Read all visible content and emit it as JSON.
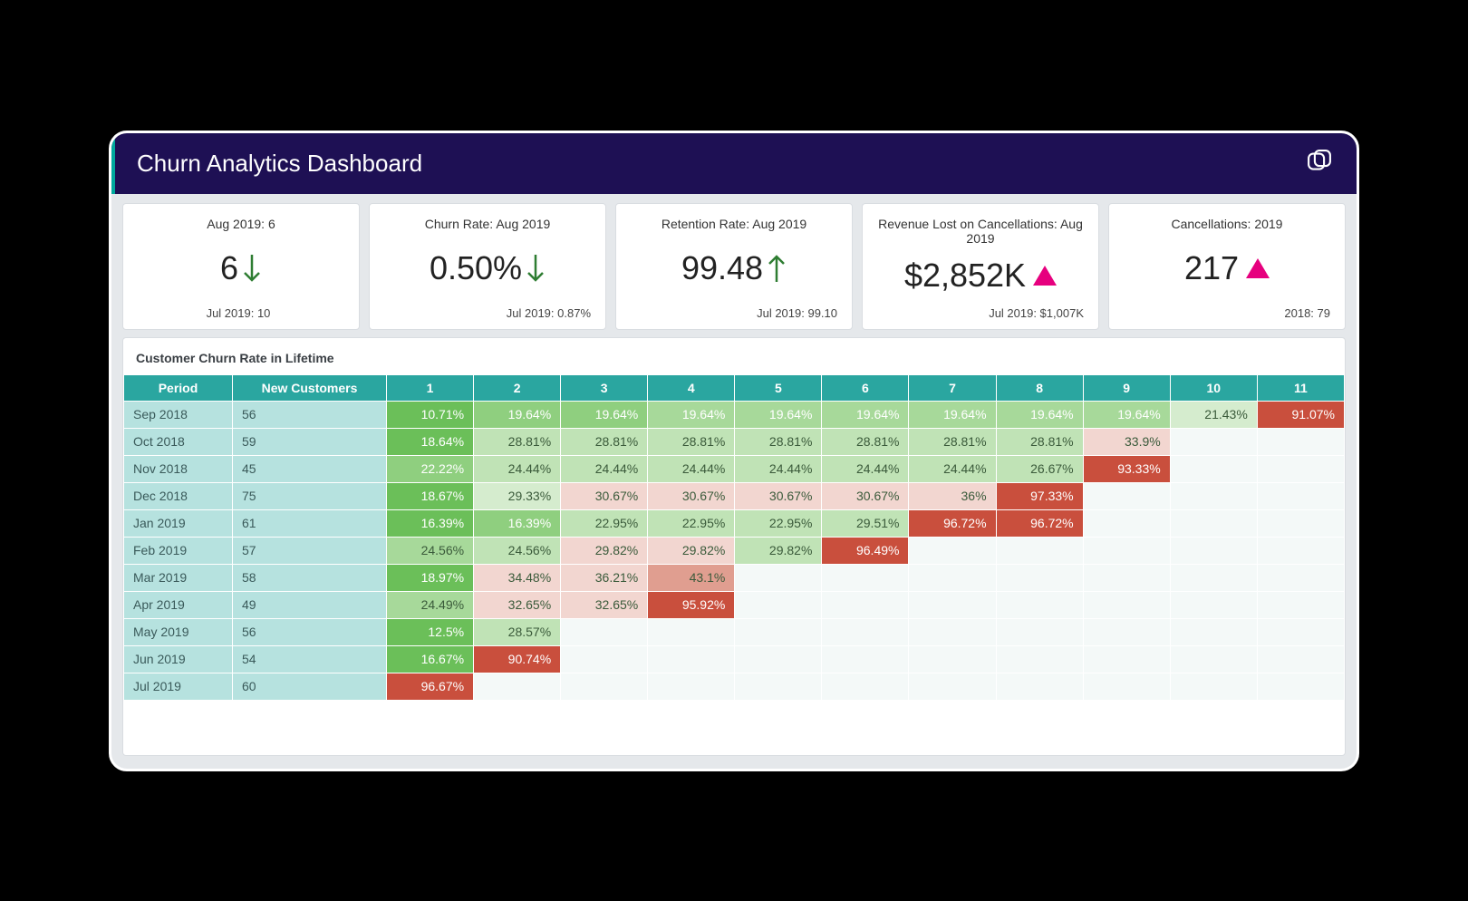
{
  "header": {
    "title": "Churn Analytics Dashboard"
  },
  "kpis": [
    {
      "title": "Aug 2019: 6",
      "value": "6",
      "indicator": "arrow-down",
      "indicator_color": "#2e7d32",
      "sub": "Jul 2019: 10",
      "sub_align": "center"
    },
    {
      "title": "Churn Rate: Aug 2019",
      "value": "0.50%",
      "indicator": "arrow-down",
      "indicator_color": "#2e7d32",
      "sub": "Jul 2019: 0.87%",
      "sub_align": "right"
    },
    {
      "title": "Retention Rate: Aug 2019",
      "value": "99.48",
      "indicator": "arrow-up",
      "indicator_color": "#2e7d32",
      "sub": "Jul 2019: 99.10",
      "sub_align": "right"
    },
    {
      "title": "Revenue Lost on Cancellations: Aug 2019",
      "value": "$2,852K",
      "indicator": "triangle-up",
      "indicator_color": "#e6007e",
      "sub": "Jul 2019: $1,007K",
      "sub_align": "right"
    },
    {
      "title": "Cancellations: 2019",
      "value": "217",
      "indicator": "triangle-up",
      "indicator_color": "#e6007e",
      "sub": "2018: 79",
      "sub_align": "right"
    }
  ],
  "cohort": {
    "title": "Customer Churn Rate in Lifetime",
    "columns": [
      "Period",
      "New Customers",
      "1",
      "2",
      "3",
      "4",
      "5",
      "6",
      "7",
      "8",
      "9",
      "10",
      "11"
    ],
    "heat_colors": {
      "g1": "#6bbf59",
      "g2": "#8fcf7f",
      "g3": "#a7d99a",
      "g4": "#c0e3b6",
      "g5": "#d5ecce",
      "p1": "#f2d6d0",
      "p2": "#e9b9af",
      "p3": "#e09e90",
      "r1": "#c94f3d",
      "text_light": "#ffffff",
      "text_dark": "#3a5a3a"
    },
    "rows": [
      {
        "period": "Sep 2018",
        "new": "56",
        "cells": [
          {
            "v": "10.71%",
            "bg": "#6bbf59",
            "fg": "#ffffff"
          },
          {
            "v": "19.64%",
            "bg": "#8fcf7f",
            "fg": "#ffffff"
          },
          {
            "v": "19.64%",
            "bg": "#8fcf7f",
            "fg": "#ffffff"
          },
          {
            "v": "19.64%",
            "bg": "#a7d99a",
            "fg": "#ffffff"
          },
          {
            "v": "19.64%",
            "bg": "#a7d99a",
            "fg": "#ffffff"
          },
          {
            "v": "19.64%",
            "bg": "#a7d99a",
            "fg": "#ffffff"
          },
          {
            "v": "19.64%",
            "bg": "#a7d99a",
            "fg": "#ffffff"
          },
          {
            "v": "19.64%",
            "bg": "#a7d99a",
            "fg": "#ffffff"
          },
          {
            "v": "19.64%",
            "bg": "#a7d99a",
            "fg": "#ffffff"
          },
          {
            "v": "21.43%",
            "bg": "#d5ecce",
            "fg": "#3a5a3a"
          },
          {
            "v": "91.07%",
            "bg": "#c94f3d",
            "fg": "#ffffff"
          }
        ]
      },
      {
        "period": "Oct 2018",
        "new": "59",
        "cells": [
          {
            "v": "18.64%",
            "bg": "#6bbf59",
            "fg": "#ffffff"
          },
          {
            "v": "28.81%",
            "bg": "#c0e3b6",
            "fg": "#3a5a3a"
          },
          {
            "v": "28.81%",
            "bg": "#c0e3b6",
            "fg": "#3a5a3a"
          },
          {
            "v": "28.81%",
            "bg": "#c0e3b6",
            "fg": "#3a5a3a"
          },
          {
            "v": "28.81%",
            "bg": "#c0e3b6",
            "fg": "#3a5a3a"
          },
          {
            "v": "28.81%",
            "bg": "#c0e3b6",
            "fg": "#3a5a3a"
          },
          {
            "v": "28.81%",
            "bg": "#c0e3b6",
            "fg": "#3a5a3a"
          },
          {
            "v": "28.81%",
            "bg": "#c0e3b6",
            "fg": "#3a5a3a"
          },
          {
            "v": "33.9%",
            "bg": "#f2d6d0",
            "fg": "#3a5a3a"
          }
        ]
      },
      {
        "period": "Nov 2018",
        "new": "45",
        "cells": [
          {
            "v": "22.22%",
            "bg": "#8fcf7f",
            "fg": "#ffffff"
          },
          {
            "v": "24.44%",
            "bg": "#c0e3b6",
            "fg": "#3a5a3a"
          },
          {
            "v": "24.44%",
            "bg": "#c0e3b6",
            "fg": "#3a5a3a"
          },
          {
            "v": "24.44%",
            "bg": "#c0e3b6",
            "fg": "#3a5a3a"
          },
          {
            "v": "24.44%",
            "bg": "#c0e3b6",
            "fg": "#3a5a3a"
          },
          {
            "v": "24.44%",
            "bg": "#c0e3b6",
            "fg": "#3a5a3a"
          },
          {
            "v": "24.44%",
            "bg": "#c0e3b6",
            "fg": "#3a5a3a"
          },
          {
            "v": "26.67%",
            "bg": "#c0e3b6",
            "fg": "#3a5a3a"
          },
          {
            "v": "93.33%",
            "bg": "#c94f3d",
            "fg": "#ffffff"
          }
        ]
      },
      {
        "period": "Dec 2018",
        "new": "75",
        "cells": [
          {
            "v": "18.67%",
            "bg": "#6bbf59",
            "fg": "#ffffff"
          },
          {
            "v": "29.33%",
            "bg": "#d5ecce",
            "fg": "#3a5a3a"
          },
          {
            "v": "30.67%",
            "bg": "#f2d6d0",
            "fg": "#3a5a3a"
          },
          {
            "v": "30.67%",
            "bg": "#f2d6d0",
            "fg": "#3a5a3a"
          },
          {
            "v": "30.67%",
            "bg": "#f2d6d0",
            "fg": "#3a5a3a"
          },
          {
            "v": "30.67%",
            "bg": "#f2d6d0",
            "fg": "#3a5a3a"
          },
          {
            "v": "36%",
            "bg": "#f2d6d0",
            "fg": "#3a5a3a"
          },
          {
            "v": "97.33%",
            "bg": "#c94f3d",
            "fg": "#ffffff"
          }
        ]
      },
      {
        "period": "Jan 2019",
        "new": "61",
        "cells": [
          {
            "v": "16.39%",
            "bg": "#6bbf59",
            "fg": "#ffffff"
          },
          {
            "v": "16.39%",
            "bg": "#8fcf7f",
            "fg": "#ffffff"
          },
          {
            "v": "22.95%",
            "bg": "#c0e3b6",
            "fg": "#3a5a3a"
          },
          {
            "v": "22.95%",
            "bg": "#c0e3b6",
            "fg": "#3a5a3a"
          },
          {
            "v": "22.95%",
            "bg": "#c0e3b6",
            "fg": "#3a5a3a"
          },
          {
            "v": "29.51%",
            "bg": "#c0e3b6",
            "fg": "#3a5a3a"
          },
          {
            "v": "96.72%",
            "bg": "#c94f3d",
            "fg": "#ffffff"
          },
          {
            "v": "96.72%",
            "bg": "#c94f3d",
            "fg": "#ffffff"
          }
        ]
      },
      {
        "period": "Feb 2019",
        "new": "57",
        "cells": [
          {
            "v": "24.56%",
            "bg": "#a7d99a",
            "fg": "#3a5a3a"
          },
          {
            "v": "24.56%",
            "bg": "#c0e3b6",
            "fg": "#3a5a3a"
          },
          {
            "v": "29.82%",
            "bg": "#f2d6d0",
            "fg": "#3a5a3a"
          },
          {
            "v": "29.82%",
            "bg": "#f2d6d0",
            "fg": "#3a5a3a"
          },
          {
            "v": "29.82%",
            "bg": "#c0e3b6",
            "fg": "#3a5a3a"
          },
          {
            "v": "96.49%",
            "bg": "#c94f3d",
            "fg": "#ffffff"
          }
        ]
      },
      {
        "period": "Mar 2019",
        "new": "58",
        "cells": [
          {
            "v": "18.97%",
            "bg": "#6bbf59",
            "fg": "#ffffff"
          },
          {
            "v": "34.48%",
            "bg": "#f2d6d0",
            "fg": "#3a5a3a"
          },
          {
            "v": "36.21%",
            "bg": "#f2d6d0",
            "fg": "#3a5a3a"
          },
          {
            "v": "43.1%",
            "bg": "#e09e90",
            "fg": "#3a5a3a"
          }
        ]
      },
      {
        "period": "Apr 2019",
        "new": "49",
        "cells": [
          {
            "v": "24.49%",
            "bg": "#a7d99a",
            "fg": "#3a5a3a"
          },
          {
            "v": "32.65%",
            "bg": "#f2d6d0",
            "fg": "#3a5a3a"
          },
          {
            "v": "32.65%",
            "bg": "#f2d6d0",
            "fg": "#3a5a3a"
          },
          {
            "v": "95.92%",
            "bg": "#c94f3d",
            "fg": "#ffffff"
          }
        ]
      },
      {
        "period": "May 2019",
        "new": "56",
        "cells": [
          {
            "v": "12.5%",
            "bg": "#6bbf59",
            "fg": "#ffffff"
          },
          {
            "v": "28.57%",
            "bg": "#c0e3b6",
            "fg": "#3a5a3a"
          }
        ]
      },
      {
        "period": "Jun 2019",
        "new": "54",
        "cells": [
          {
            "v": "16.67%",
            "bg": "#6bbf59",
            "fg": "#ffffff"
          },
          {
            "v": "90.74%",
            "bg": "#c94f3d",
            "fg": "#ffffff"
          }
        ]
      },
      {
        "period": "Jul 2019",
        "new": "60",
        "cells": [
          {
            "v": "96.67%",
            "bg": "#c94f3d",
            "fg": "#ffffff"
          }
        ]
      }
    ]
  }
}
